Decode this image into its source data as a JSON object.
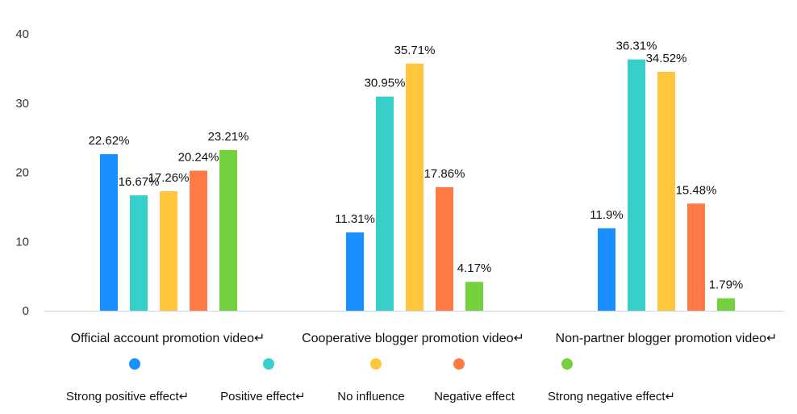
{
  "chart_data": {
    "type": "bar",
    "categories": [
      "Official account promotion video↵",
      "Cooperative blogger promotion video↵",
      "Non-partner blogger promotion video↵"
    ],
    "series": [
      {
        "name": "Strong positive effect↵",
        "color": "#1890ff",
        "values": [
          22.62,
          11.31,
          11.9
        ],
        "labels": [
          "22.62%",
          "11.31%",
          "11.9%"
        ]
      },
      {
        "name": "Positive effect↵",
        "color": "#36cfc9",
        "values": [
          16.67,
          30.95,
          36.31
        ],
        "labels": [
          "16.67%",
          "30.95%",
          "36.31%"
        ]
      },
      {
        "name": "No influence",
        "color": "#ffc53d",
        "values": [
          17.26,
          35.71,
          34.52
        ],
        "labels": [
          "17.26%",
          "35.71%",
          "34.52%"
        ]
      },
      {
        "name": "Negative effect",
        "color": "#ff7a45",
        "values": [
          20.24,
          17.86,
          15.48
        ],
        "labels": [
          "20.24%",
          "17.86%",
          "15.48%"
        ]
      },
      {
        "name": "Strong negative effect↵",
        "color": "#73d13d",
        "values": [
          23.21,
          4.17,
          1.79
        ],
        "labels": [
          "23.21%",
          "4.17%",
          "1.79%"
        ]
      }
    ],
    "yticks": [
      "0",
      "10",
      "20",
      "30",
      "40"
    ],
    "ylim": [
      0,
      40
    ],
    "grid": false,
    "legend_position": "bottom"
  }
}
